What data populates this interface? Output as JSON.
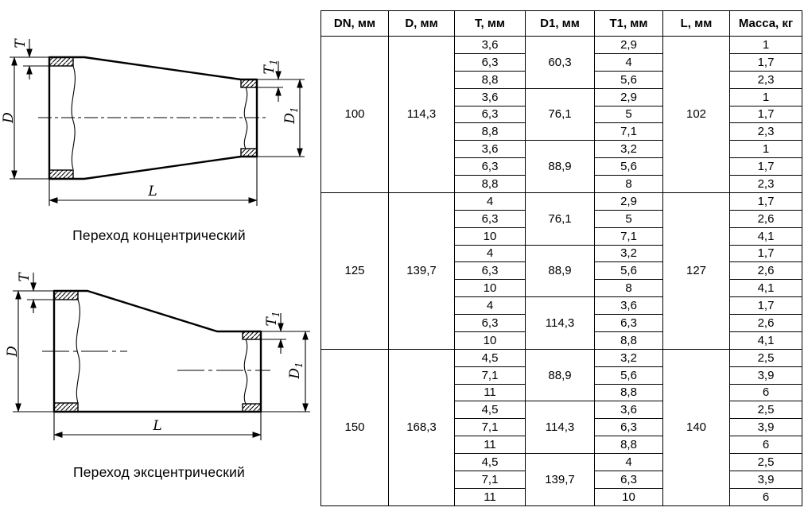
{
  "colors": {
    "line": "#000000",
    "background": "#ffffff"
  },
  "drawings": {
    "concentric": {
      "caption": "Переход концентрический"
    },
    "eccentric": {
      "caption": "Переход эксцентрический"
    },
    "dim_labels": {
      "t": "T",
      "d": "D",
      "l": "L",
      "d1_base": "D",
      "d1_sub": "1",
      "t1_base": "T",
      "t1_sub": "1"
    }
  },
  "table": {
    "headers": [
      "DN, мм",
      "D, мм",
      "T, мм",
      "D1, мм",
      "T1, мм",
      "L, мм",
      "Масса, кг"
    ],
    "groups": [
      {
        "dn": "100",
        "d": "114,3",
        "l": "102",
        "subgroups": [
          {
            "d1": "60,3",
            "rows": [
              {
                "t": "3,6",
                "t1": "2,9",
                "mass": "1"
              },
              {
                "t": "6,3",
                "t1": "4",
                "mass": "1,7"
              },
              {
                "t": "8,8",
                "t1": "5,6",
                "mass": "2,3"
              }
            ]
          },
          {
            "d1": "76,1",
            "rows": [
              {
                "t": "3,6",
                "t1": "2,9",
                "mass": "1"
              },
              {
                "t": "6,3",
                "t1": "5",
                "mass": "1,7"
              },
              {
                "t": "8,8",
                "t1": "7,1",
                "mass": "2,3"
              }
            ]
          },
          {
            "d1": "88,9",
            "rows": [
              {
                "t": "3,6",
                "t1": "3,2",
                "mass": "1"
              },
              {
                "t": "6,3",
                "t1": "5,6",
                "mass": "1,7"
              },
              {
                "t": "8,8",
                "t1": "8",
                "mass": "2,3"
              }
            ]
          }
        ]
      },
      {
        "dn": "125",
        "d": "139,7",
        "l": "127",
        "subgroups": [
          {
            "d1": "76,1",
            "rows": [
              {
                "t": "4",
                "t1": "2,9",
                "mass": "1,7"
              },
              {
                "t": "6,3",
                "t1": "5",
                "mass": "2,6"
              },
              {
                "t": "10",
                "t1": "7,1",
                "mass": "4,1"
              }
            ]
          },
          {
            "d1": "88,9",
            "rows": [
              {
                "t": "4",
                "t1": "3,2",
                "mass": "1,7"
              },
              {
                "t": "6,3",
                "t1": "5,6",
                "mass": "2,6"
              },
              {
                "t": "10",
                "t1": "8",
                "mass": "4,1"
              }
            ]
          },
          {
            "d1": "114,3",
            "rows": [
              {
                "t": "4",
                "t1": "3,6",
                "mass": "1,7"
              },
              {
                "t": "6,3",
                "t1": "6,3",
                "mass": "2,6"
              },
              {
                "t": "10",
                "t1": "8,8",
                "mass": "4,1"
              }
            ]
          }
        ]
      },
      {
        "dn": "150",
        "d": "168,3",
        "l": "140",
        "subgroups": [
          {
            "d1": "88,9",
            "rows": [
              {
                "t": "4,5",
                "t1": "3,2",
                "mass": "2,5"
              },
              {
                "t": "7,1",
                "t1": "5,6",
                "mass": "3,9"
              },
              {
                "t": "11",
                "t1": "8,8",
                "mass": "6"
              }
            ]
          },
          {
            "d1": "114,3",
            "rows": [
              {
                "t": "4,5",
                "t1": "3,6",
                "mass": "2,5"
              },
              {
                "t": "7,1",
                "t1": "6,3",
                "mass": "3,9"
              },
              {
                "t": "11",
                "t1": "8,8",
                "mass": "6"
              }
            ]
          },
          {
            "d1": "139,7",
            "rows": [
              {
                "t": "4,5",
                "t1": "4",
                "mass": "2,5"
              },
              {
                "t": "7,1",
                "t1": "6,3",
                "mass": "3,9"
              },
              {
                "t": "11",
                "t1": "10",
                "mass": "6"
              }
            ]
          }
        ]
      }
    ]
  }
}
